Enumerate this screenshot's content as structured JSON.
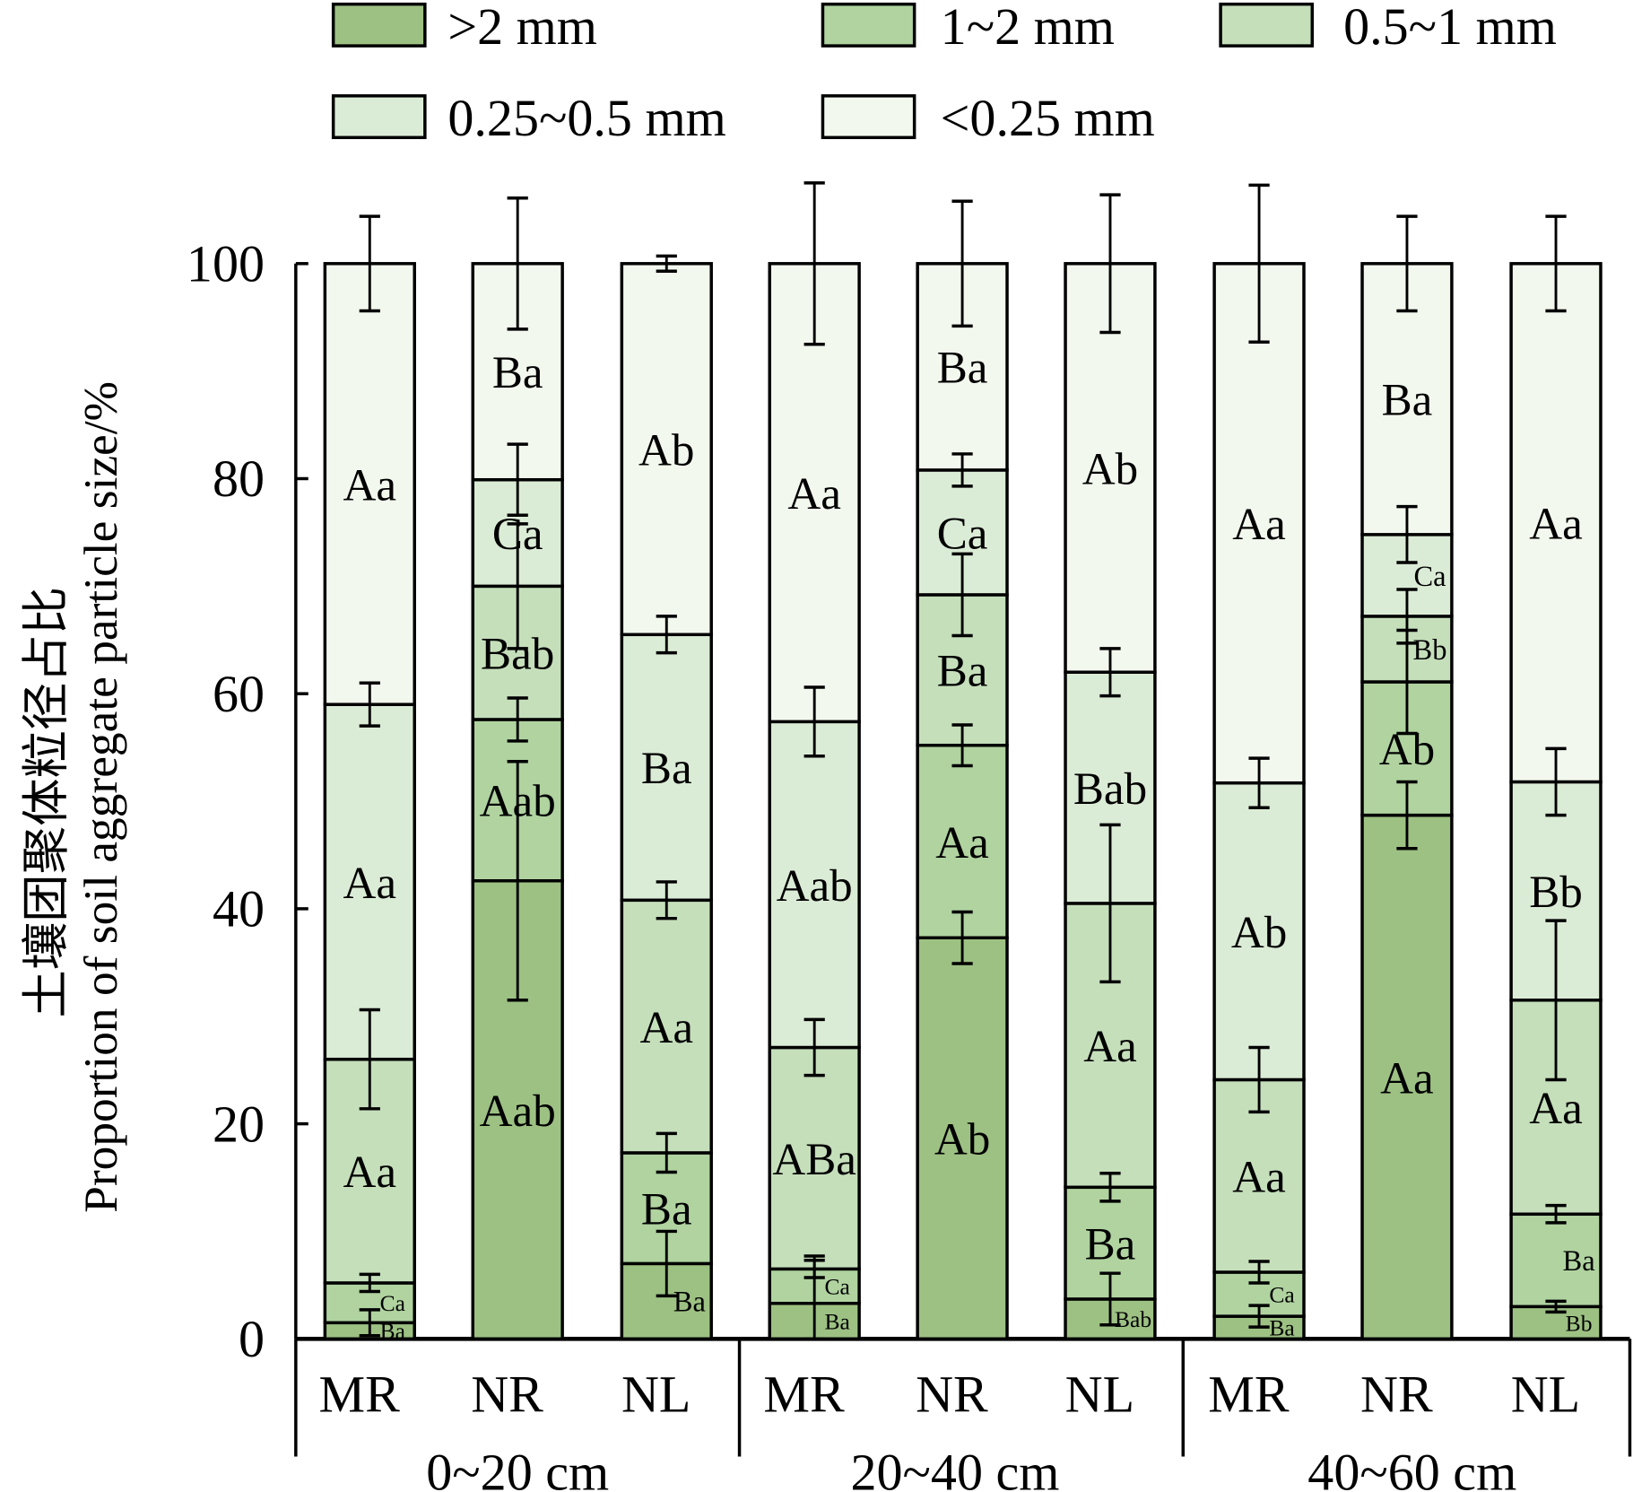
{
  "chart_data": {
    "type": "bar",
    "stacked": true,
    "ylabel_cn": "土壤团聚体粒径占比",
    "ylabel": "Proportion of soil aggregate particle size/%",
    "ylim": [
      0,
      100
    ],
    "yticks": [
      "0",
      "20",
      "40",
      "60",
      "80",
      "100"
    ],
    "groups": [
      "0~20 cm",
      "20~40 cm",
      "40~60 cm"
    ],
    "categories": [
      "MR",
      "NR",
      "NL",
      "MR",
      "NR",
      "NL",
      "MR",
      "NR",
      "NL"
    ],
    "legend_position": "top",
    "series": [
      {
        "name": ">2 mm",
        "color": "#9dc183",
        "values": [
          1.5,
          42.6,
          7.0,
          3.3,
          37.3,
          3.7,
          2.1,
          48.7,
          3.0
        ],
        "errors": [
          1.2,
          11.1,
          3.0,
          4.4,
          2.4,
          2.4,
          1.0,
          3.1,
          0.5
        ],
        "labels": [
          "Ba",
          "Aab",
          "Ba",
          "Ba",
          "Ab",
          "Bab",
          "Ba",
          "Aa",
          "Bb"
        ]
      },
      {
        "name": "1~2 mm",
        "color": "#b0d3a0",
        "values": [
          3.7,
          15.0,
          10.3,
          3.2,
          17.9,
          10.4,
          4.1,
          12.4,
          8.6
        ],
        "errors": [
          0.8,
          2.0,
          1.8,
          0.8,
          1.9,
          1.3,
          1.0,
          4.8,
          0.8
        ],
        "labels": [
          "Ca",
          "Aab",
          "Ba",
          "Ca",
          "Aa",
          "Ba",
          "Ca",
          "Ab",
          "Ba"
        ]
      },
      {
        "name": "0.5~1 mm",
        "color": "#c5dfbb",
        "values": [
          20.8,
          12.4,
          23.5,
          20.6,
          14.0,
          26.4,
          17.9,
          6.1,
          19.9
        ],
        "errors": [
          4.6,
          5.8,
          1.7,
          2.6,
          3.8,
          7.3,
          3.0,
          2.5,
          7.4
        ],
        "labels": [
          "Aa",
          "Bab",
          "Aa",
          "ABa",
          "Ba",
          "Aa",
          "Aa",
          "Bb",
          "Aa"
        ]
      },
      {
        "name": "0.25~0.5 mm",
        "color": "#dbecd6",
        "values": [
          33.0,
          9.9,
          24.7,
          30.3,
          11.6,
          21.5,
          27.6,
          7.6,
          20.3
        ],
        "errors": [
          2.0,
          3.3,
          1.7,
          3.2,
          1.5,
          2.2,
          2.3,
          2.6,
          3.1
        ],
        "labels": [
          "Aa",
          "Ca",
          "Ba",
          "Aab",
          "Ca",
          "Bab",
          "Ab",
          "Ca",
          "Bb"
        ]
      },
      {
        "name": "<0.25 mm",
        "color": "#f2f8ee",
        "values": [
          41.0,
          20.1,
          34.5,
          42.6,
          19.2,
          38.0,
          48.3,
          25.2,
          48.2
        ],
        "errors": [
          4.4,
          6.1,
          0.7,
          7.5,
          5.8,
          6.4,
          7.3,
          4.4,
          4.4
        ],
        "labels": [
          "Aa",
          "Ba",
          "Ab",
          "Aa",
          "Ba",
          "Ab",
          "Aa",
          "Ba",
          "Aa"
        ]
      }
    ]
  }
}
